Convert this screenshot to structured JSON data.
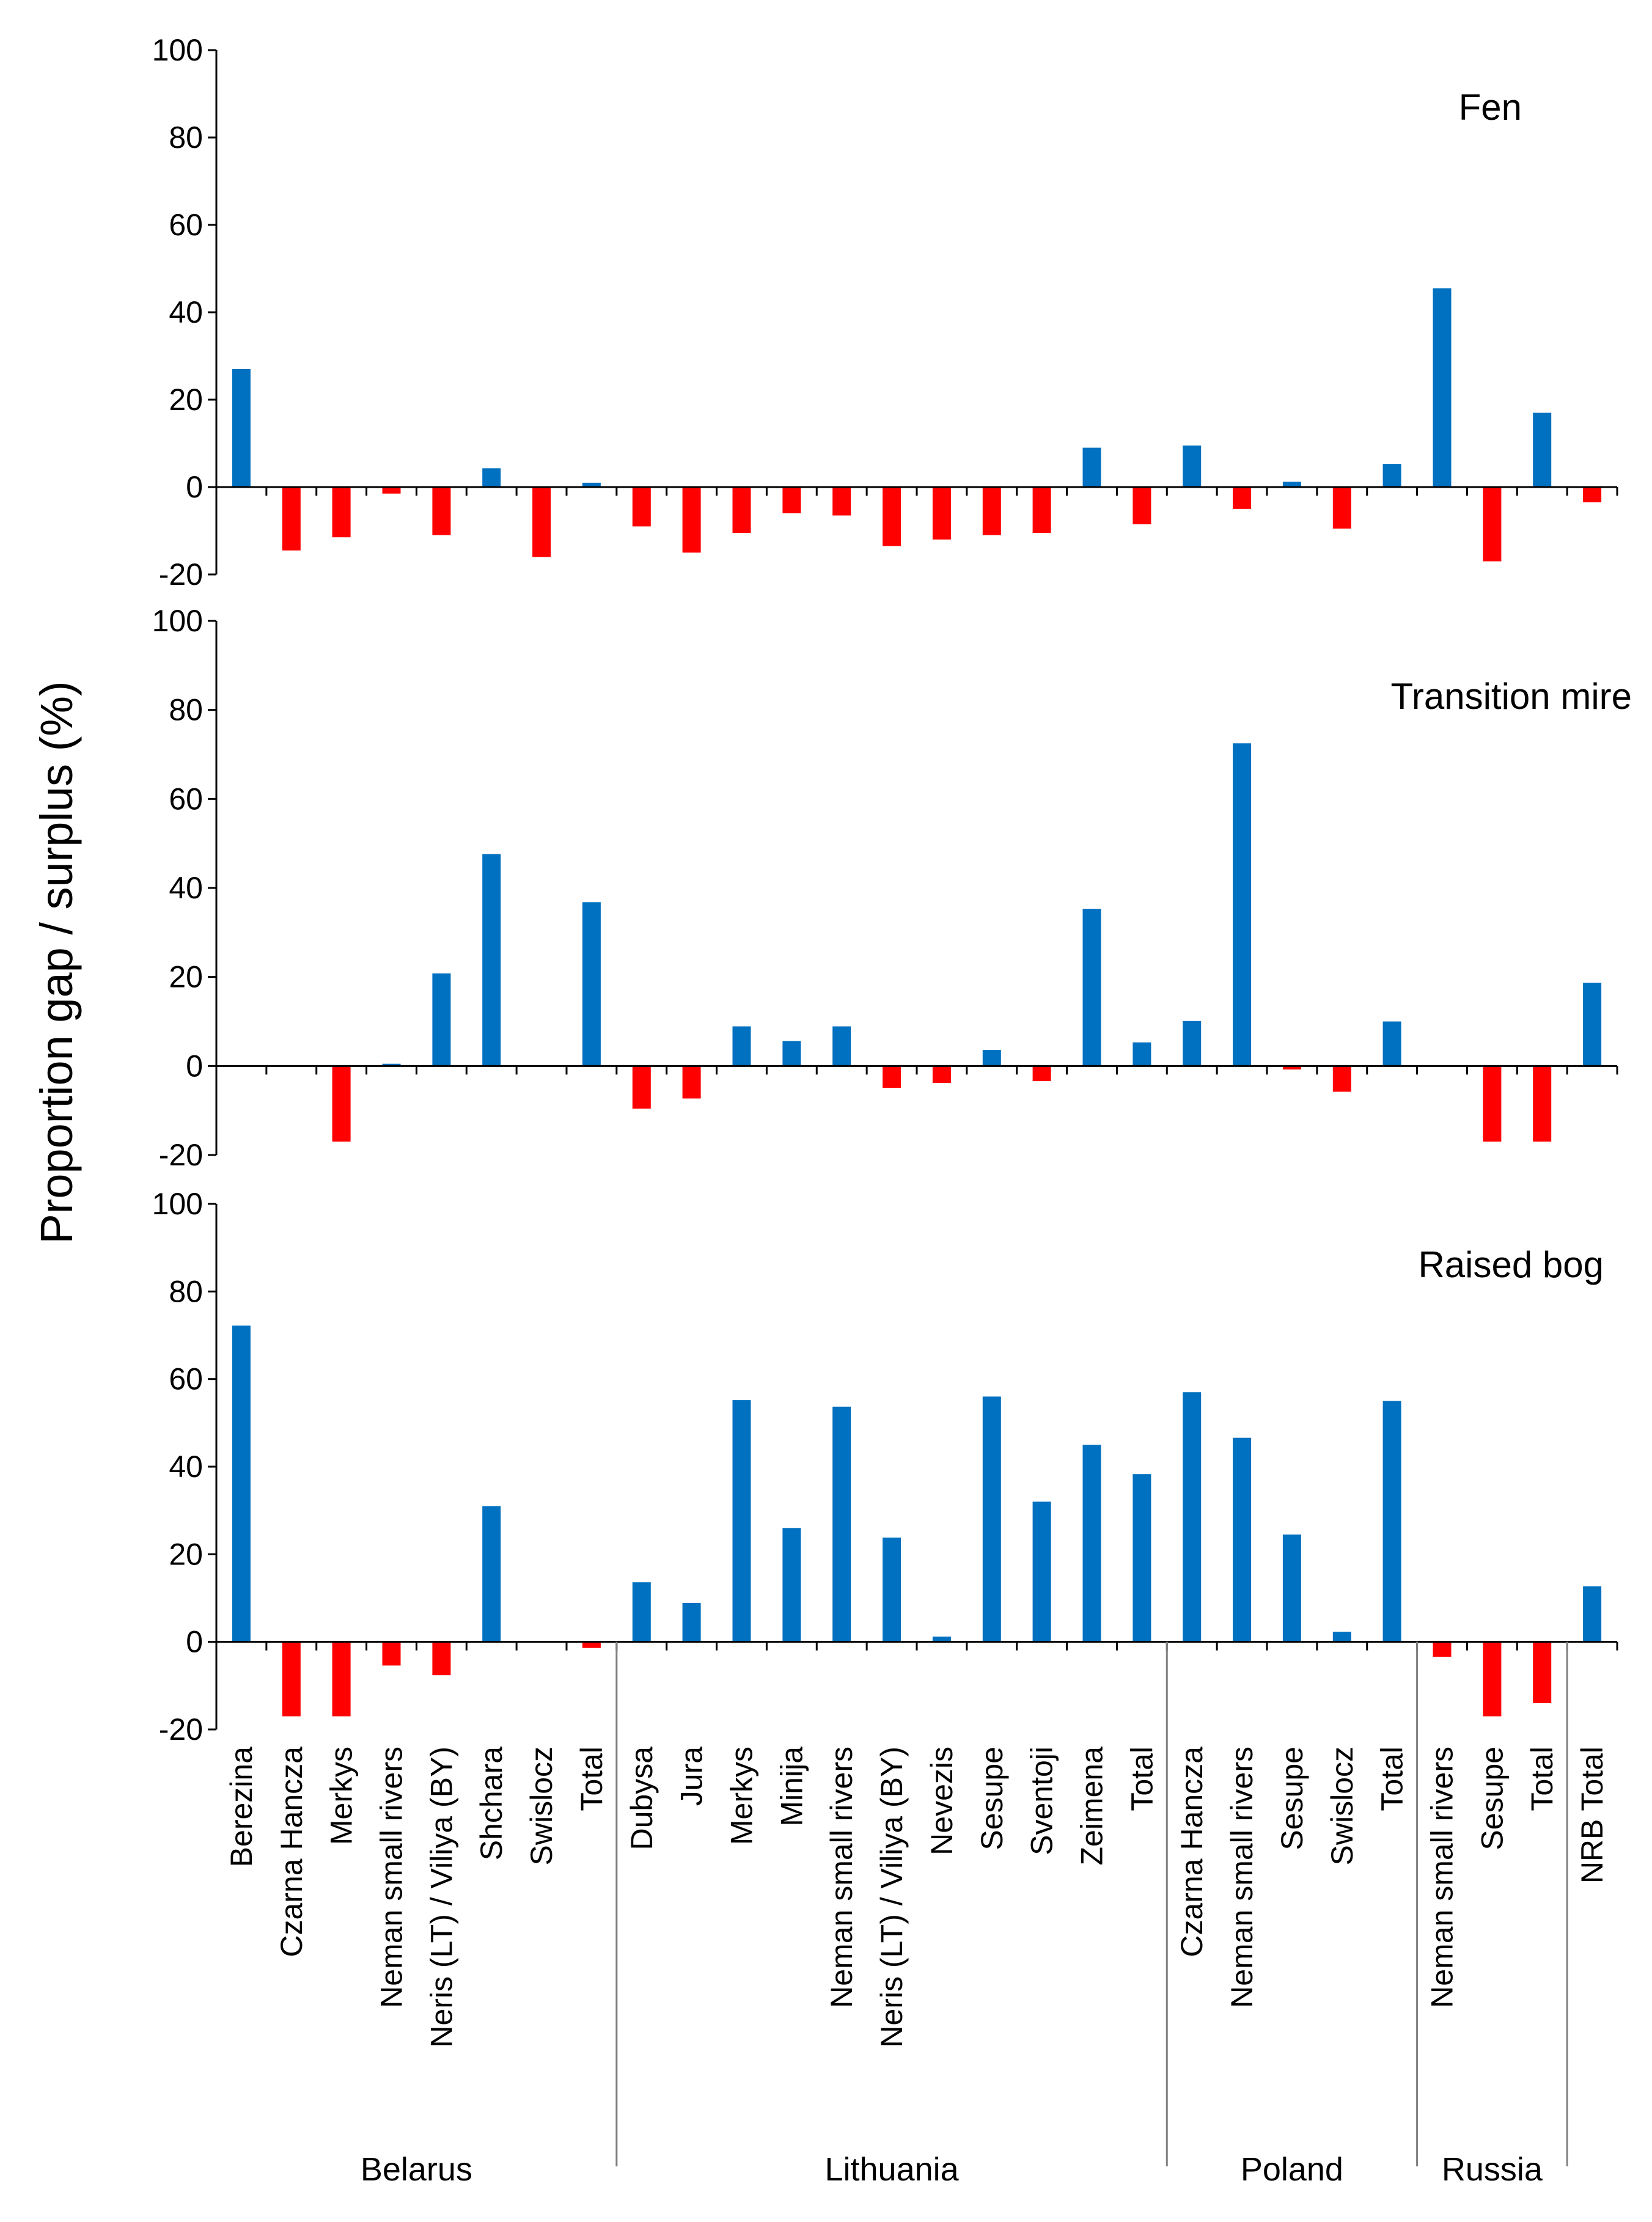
{
  "chart_data": {
    "type": "bar",
    "ylabel": "Proportion gap / surplus (%)",
    "ylim": [
      -20,
      100
    ],
    "yticks": [
      100,
      80,
      60,
      40,
      20,
      0,
      -20
    ],
    "colors": {
      "positive": "#0070C0",
      "negative": "#FF0000"
    },
    "categories": [
      "Berezina",
      "Czarna Hancza",
      "Merkys",
      "Neman small rivers",
      "Neris (LT) / Viliya (BY)",
      "Shchara",
      "Swislocz",
      "Total",
      "Dubysa",
      "Jura",
      "Merkys",
      "Minija",
      "Neman small rivers",
      "Neris (LT) / Viliya (BY)",
      "Nevezis",
      "Sesupe",
      "Sventoji",
      "Zeimena",
      "Total",
      "Czarna Hancza",
      "Neman small rivers",
      "Sesupe",
      "Swislocz",
      "Total",
      "Neman small rivers",
      "Sesupe",
      "Total",
      "NRB Total"
    ],
    "groups": [
      {
        "name": "Belarus",
        "count": 8
      },
      {
        "name": "Lithuania",
        "count": 11
      },
      {
        "name": "Poland",
        "count": 5
      },
      {
        "name": "Russia",
        "count": 3
      },
      {
        "name": "",
        "count": 1
      }
    ],
    "series": [
      {
        "name": "Fen",
        "values": [
          27,
          -14.5,
          -11.5,
          -1.5,
          -11,
          4.3,
          -16,
          1,
          -9,
          -15,
          -10.5,
          -6,
          -6.5,
          -13.5,
          -12,
          -11,
          -10.5,
          9,
          -8.5,
          9.5,
          -5,
          1.2,
          -9.5,
          5.3,
          45.5,
          -17,
          17,
          -3.5
        ]
      },
      {
        "name": "Transition mire",
        "values": [
          0,
          0,
          -17,
          0.5,
          20.8,
          47.6,
          0,
          36.8,
          -9.6,
          -7.3,
          8.9,
          5.6,
          8.9,
          -4.9,
          -3.8,
          3.6,
          -3.4,
          35.3,
          5.3,
          10.1,
          72.5,
          -0.8,
          -5.8,
          10,
          0,
          -17,
          -17,
          18.7
        ]
      },
      {
        "name": "Raised bog",
        "values": [
          72.2,
          -17,
          -17,
          -5.4,
          -7.6,
          31,
          0,
          -1.4,
          13.6,
          8.9,
          55.2,
          26,
          53.7,
          23.8,
          1.2,
          56,
          32,
          45,
          38.3,
          57,
          46.6,
          24.5,
          2.3,
          55,
          -3.4,
          -17,
          -14,
          12.7
        ]
      }
    ]
  }
}
